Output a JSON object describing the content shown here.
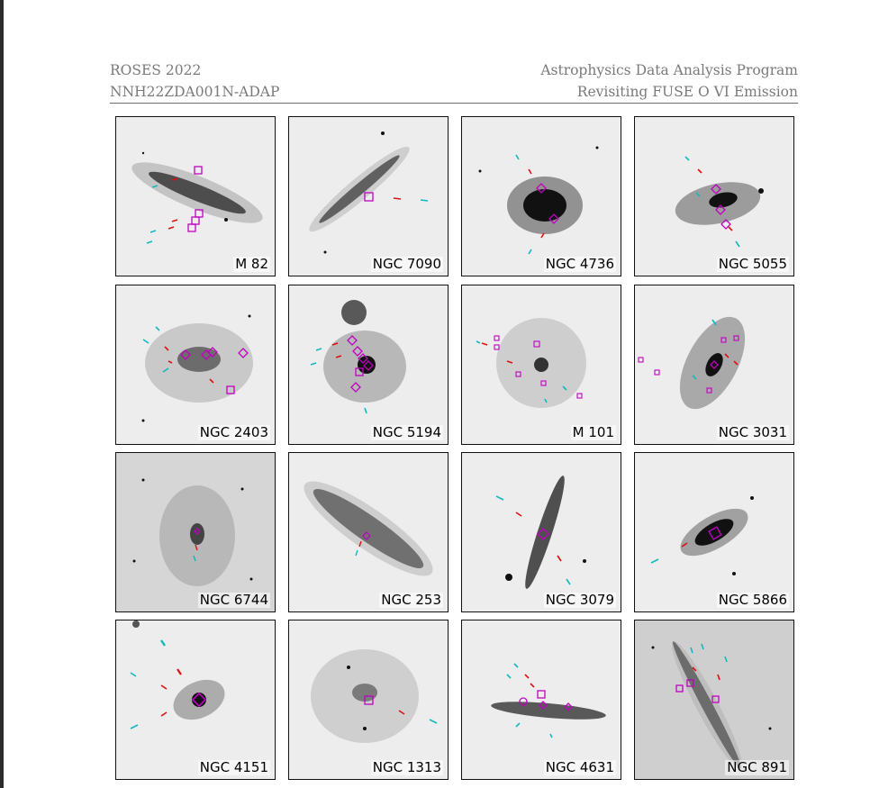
{
  "header": {
    "left_line1": "ROSES 2022",
    "left_line2": "NNH22ZDA001N-ADAP",
    "right_line1": "Astrophysics Data Analysis Program",
    "right_line2": "Revisiting FUSE O VI Emission"
  },
  "colors": {
    "aperture_box": "#c000c0",
    "marker_red": "#e01010",
    "marker_cyan": "#10b8c0",
    "galaxy": "#1a1a1a",
    "background": "#ededed"
  },
  "panels": [
    {
      "label": "M 82"
    },
    {
      "label": "NGC 7090"
    },
    {
      "label": "NGC 4736"
    },
    {
      "label": "NGC 5055"
    },
    {
      "label": "NGC 2403"
    },
    {
      "label": "NGC 5194"
    },
    {
      "label": "M 101"
    },
    {
      "label": "NGC 3031"
    },
    {
      "label": "NGC 6744"
    },
    {
      "label": "NGC 253"
    },
    {
      "label": "NGC 3079"
    },
    {
      "label": "NGC 5866"
    },
    {
      "label": "NGC 4151"
    },
    {
      "label": "NGC 1313"
    },
    {
      "label": "NGC 4631"
    },
    {
      "label": "NGC 891"
    }
  ]
}
